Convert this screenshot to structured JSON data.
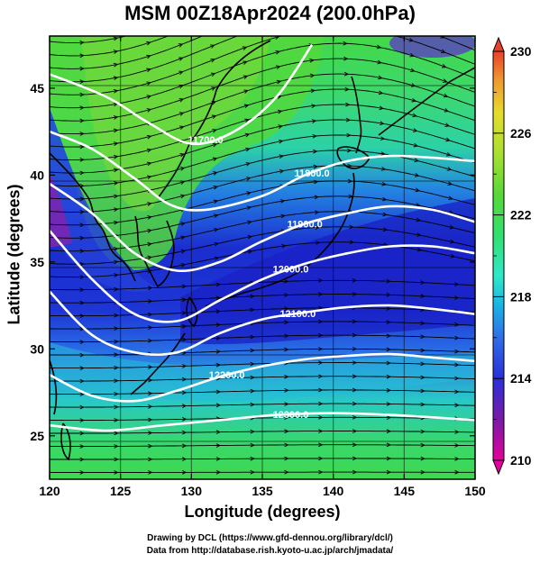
{
  "title": "MSM 00Z18Apr2024 (200.0hPa)",
  "xlabel": "Longitude (degrees)",
  "ylabel": "Latitude  (degrees)",
  "credit_line1": "Drawing by DCL (https://www.gfd-dennou.org/library/dcl/)",
  "credit_line2": "Data from http://database.rish.kyoto-u.ac.jp/arch/jmadata/",
  "map": {
    "lon_range": [
      120,
      150
    ],
    "lat_range": [
      22.5,
      48
    ],
    "lon_ticks": [
      "120",
      "125",
      "130",
      "135",
      "140",
      "145",
      "150"
    ],
    "lat_ticks": [
      "25",
      "30",
      "35",
      "40",
      "45"
    ],
    "colorbar_range": [
      210,
      230
    ],
    "colorbar_ticks": [
      "210",
      "214",
      "218",
      "222",
      "226",
      "230"
    ],
    "contours": [
      {
        "label": "11700.0",
        "label_lon": 131,
        "points": [
          [
            120,
            45.8
          ],
          [
            124,
            44.5
          ],
          [
            127,
            43.0
          ],
          [
            130,
            41.8
          ],
          [
            133,
            42.5
          ],
          [
            136,
            44.5
          ],
          [
            138.5,
            47.5
          ]
        ]
      },
      {
        "label": "11800.0",
        "label_lon": 138.5,
        "points": [
          [
            120,
            42.5
          ],
          [
            123,
            41.5
          ],
          [
            126,
            39.8
          ],
          [
            128.5,
            38.3
          ],
          [
            131,
            38.0
          ],
          [
            135,
            38.8
          ],
          [
            138,
            40.0
          ],
          [
            141,
            40.8
          ],
          [
            144,
            41.1
          ],
          [
            147,
            41.0
          ],
          [
            150,
            40.8
          ]
        ]
      },
      {
        "label": "11900.0",
        "label_lon": 138,
        "points": [
          [
            120,
            39.5
          ],
          [
            123,
            37.8
          ],
          [
            126,
            35.5
          ],
          [
            129,
            34.5
          ],
          [
            132,
            35.0
          ],
          [
            135,
            36.2
          ],
          [
            138,
            37.2
          ],
          [
            141,
            37.8
          ],
          [
            144,
            38.2
          ],
          [
            147,
            38.0
          ],
          [
            150,
            37.3
          ]
        ]
      },
      {
        "label": "12000.0",
        "label_lon": 137,
        "points": [
          [
            120,
            36.8
          ],
          [
            123,
            34.0
          ],
          [
            126,
            32.0
          ],
          [
            129,
            31.6
          ],
          [
            132,
            32.8
          ],
          [
            135,
            34.0
          ],
          [
            138,
            34.9
          ],
          [
            141,
            35.5
          ],
          [
            144,
            35.9
          ],
          [
            147,
            35.9
          ],
          [
            150,
            35.5
          ]
        ]
      },
      {
        "label": "12100.0",
        "label_lon": 137.5,
        "points": [
          [
            120,
            33.3
          ],
          [
            123,
            30.8
          ],
          [
            126,
            29.8
          ],
          [
            129,
            29.8
          ],
          [
            132,
            30.9
          ],
          [
            135,
            31.7
          ],
          [
            138,
            32.1
          ],
          [
            141,
            32.4
          ],
          [
            144,
            32.5
          ],
          [
            147,
            32.3
          ],
          [
            150,
            32.0
          ]
        ]
      },
      {
        "label": "12200.0",
        "label_lon": 132.5,
        "points": [
          [
            120,
            28.5
          ],
          [
            123,
            27.3
          ],
          [
            126,
            27.0
          ],
          [
            129,
            27.6
          ],
          [
            132,
            28.4
          ],
          [
            135,
            29.0
          ],
          [
            138,
            29.4
          ],
          [
            141,
            29.6
          ],
          [
            144,
            29.7
          ],
          [
            147,
            29.5
          ],
          [
            150,
            29.3
          ]
        ]
      },
      {
        "label": "12300.0",
        "label_lon": 137,
        "points": [
          [
            120,
            25.6
          ],
          [
            124,
            25.3
          ],
          [
            128,
            25.6
          ],
          [
            132,
            25.9
          ],
          [
            136,
            26.2
          ],
          [
            140,
            26.3
          ],
          [
            144,
            26.2
          ],
          [
            150,
            25.9
          ]
        ]
      }
    ]
  },
  "colors": {
    "cb_stops": [
      "#e4009c",
      "#8a1aa6",
      "#2a2fd9",
      "#1e55e6",
      "#19b4e6",
      "#2ee8c8",
      "#2fe080",
      "#4fd43b",
      "#a0e032",
      "#e6e02c",
      "#f0a030",
      "#e8402a"
    ],
    "jet_core": "#1b22c8",
    "mid_blue": "#2a5ee8",
    "cyan": "#25c8e0",
    "green": "#3ddc6a",
    "light_green": "#6ee04a",
    "yellow_green": "#b6e03a"
  }
}
